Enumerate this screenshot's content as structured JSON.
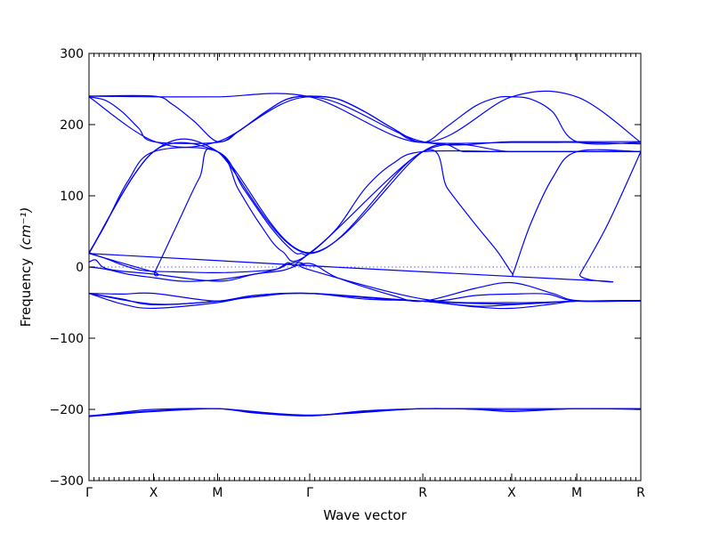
{
  "chart_data": {
    "type": "line",
    "title": "",
    "xlabel": "Wave vector",
    "ylabel": "Frequency",
    "ylabel_unit": "(cm⁻¹)",
    "ylim": [
      -300,
      300
    ],
    "xlim": [
      0,
      1
    ],
    "yticks": [
      -300,
      -200,
      -100,
      0,
      100,
      200,
      300
    ],
    "grid": false,
    "zero_line": {
      "y": 0,
      "style": "dotted"
    },
    "high_symmetry_points": [
      {
        "label": "Γ",
        "x": 0.0
      },
      {
        "label": "X",
        "x": 0.117
      },
      {
        "label": "M",
        "x": 0.233
      },
      {
        "label": "Γ",
        "x": 0.4
      },
      {
        "label": "R",
        "x": 0.605
      },
      {
        "label": "X",
        "x": 0.766
      },
      {
        "label": "M",
        "x": 0.884
      },
      {
        "label": "R",
        "x": 1.0
      }
    ],
    "series": [
      {
        "x": [
          0,
          0.117,
          0.233,
          0.4,
          0.605,
          0.766,
          0.884,
          1.0
        ],
        "y": [
          240,
          239,
          239,
          239,
          175,
          239,
          239,
          175
        ]
      },
      {
        "x": [
          0,
          0.03,
          0.06,
          0.09,
          0.117,
          0.233,
          0.27,
          0.32,
          0.36,
          0.4,
          0.45,
          0.5,
          0.55,
          0.605,
          0.65,
          0.7,
          0.74,
          0.766,
          0.8,
          0.84,
          0.884,
          1.0
        ],
        "y": [
          239,
          234,
          218,
          195,
          176,
          175,
          190,
          218,
          236,
          240,
          236,
          218,
          195,
          175,
          198,
          226,
          238,
          239,
          236,
          218,
          176,
          175
        ]
      },
      {
        "x": [
          0,
          0.117,
          0.15,
          0.19,
          0.233,
          0.27,
          0.32,
          0.36,
          0.4,
          0.45,
          0.5,
          0.55,
          0.605,
          0.766,
          0.81,
          0.85,
          0.884,
          1.0
        ],
        "y": [
          240,
          240,
          229,
          205,
          176,
          190,
          218,
          236,
          240,
          236,
          218,
          195,
          175,
          175,
          175,
          175,
          175,
          173
        ]
      },
      {
        "x": [
          0,
          0.12,
          0.233,
          0.4,
          0.605,
          0.766,
          0.884,
          1.0
        ],
        "y": [
          239,
          176,
          176,
          239,
          176,
          176,
          176,
          176
        ]
      },
      {
        "x": [
          0,
          0.03,
          0.07,
          0.117,
          0.233,
          0.28,
          0.33,
          0.37,
          0.385,
          0.4,
          0.45,
          0.5,
          0.55,
          0.605,
          0.766,
          0.884,
          1.0
        ],
        "y": [
          20,
          60,
          120,
          162,
          162,
          110,
          55,
          22,
          19,
          20,
          55,
          110,
          145,
          162,
          162,
          162,
          162
        ]
      },
      {
        "x": [
          0,
          0.117,
          0.233,
          0.4,
          0.605,
          0.68,
          0.72,
          0.75,
          0.766,
          0.77,
          0.884,
          1.0
        ],
        "y": [
          19,
          162,
          162,
          20,
          162,
          162,
          162,
          162,
          162,
          162,
          162,
          162
        ]
      },
      {
        "x": [
          0,
          0.117,
          0.12,
          0.16,
          0.2,
          0.233,
          0.4,
          0.605,
          0.766,
          0.884,
          1.0
        ],
        "y": [
          19,
          -7,
          -6,
          60,
          125,
          162,
          19,
          162,
          162,
          162,
          162
        ]
      },
      {
        "x": [
          0,
          0.117,
          0.233,
          0.27,
          0.31,
          0.35,
          0.4,
          0.605,
          0.65,
          0.7,
          0.74,
          0.766,
          0.77,
          0.8,
          0.84,
          0.884,
          1.0
        ],
        "y": [
          20,
          162,
          162,
          110,
          60,
          22,
          19,
          162,
          110,
          60,
          22,
          -8,
          -6,
          60,
          125,
          162,
          162
        ]
      },
      {
        "x": [
          0,
          0.884,
          0.89,
          0.94,
          1.0
        ],
        "y": [
          19,
          -18,
          -10,
          60,
          162
        ]
      },
      {
        "x": [
          0,
          0.03,
          0.06,
          0.09,
          0.117,
          0.17,
          0.233,
          0.3,
          0.34,
          0.36,
          0.38,
          0.4
        ],
        "y": [
          20,
          12,
          3,
          -4,
          -6,
          -7,
          -8,
          -6,
          -3,
          4,
          8,
          20
        ]
      },
      {
        "x": [
          0,
          0.03,
          0.07,
          0.117,
          0.17,
          0.233,
          0.3,
          0.34,
          0.36,
          0.37,
          0.38,
          0.39,
          0.4,
          0.605,
          0.766,
          0.884,
          1.0
        ],
        "y": [
          0,
          -3,
          -10,
          -15,
          -20,
          -18,
          -10,
          -3,
          6,
          2,
          6,
          4,
          -4,
          -45,
          -50,
          -48,
          -47
        ]
      },
      {
        "x": [
          0,
          0.012,
          0.025,
          0.05,
          0.117,
          0.233,
          0.3,
          0.35,
          0.4,
          0.45,
          0.55,
          0.605,
          0.7,
          0.766,
          0.84,
          0.884,
          1.0
        ],
        "y": [
          7,
          10,
          0,
          -5,
          -10,
          -20,
          -10,
          -5,
          5,
          -15,
          -40,
          -48,
          -30,
          -22,
          -37,
          -47,
          -48
        ]
      },
      {
        "x": [
          0,
          0.06,
          0.117,
          0.233,
          0.3,
          0.4,
          0.605,
          0.7,
          0.766,
          0.83,
          0.884,
          1.0
        ],
        "y": [
          -37,
          -38,
          -37,
          -48,
          -40,
          -37,
          -48,
          -40,
          -38,
          -38,
          -48,
          -47
        ]
      },
      {
        "x": [
          0,
          0.06,
          0.117,
          0.233,
          0.3,
          0.4,
          0.5,
          0.605,
          0.7,
          0.766,
          0.84,
          0.884,
          1.0
        ],
        "y": [
          -37,
          -45,
          -53,
          -48,
          -40,
          -37,
          -45,
          -48,
          -56,
          -58,
          -52,
          -48,
          -47
        ]
      },
      {
        "x": [
          0,
          0.06,
          0.117,
          0.233,
          0.3,
          0.4,
          0.5,
          0.605,
          0.7,
          0.766,
          0.83,
          0.884,
          1.0
        ],
        "y": [
          -37,
          -52,
          -58,
          -50,
          -40,
          -37,
          -43,
          -48,
          -55,
          -53,
          -50,
          -48,
          -48
        ]
      },
      {
        "x": [
          0,
          0.117,
          0.233,
          0.3,
          0.4,
          0.605,
          0.766,
          0.884,
          1.0
        ],
        "y": [
          -37,
          -52,
          -48,
          -42,
          -37,
          -48,
          -52,
          -48,
          -47
        ]
      },
      {
        "x": [
          0,
          0.05,
          0.117,
          0.233,
          0.3,
          0.4,
          0.5,
          0.605,
          0.766,
          0.884,
          1.0
        ],
        "y": [
          -210,
          -205,
          -200,
          -199,
          -205,
          -209,
          -202,
          -199,
          -199,
          -199,
          -199
        ]
      },
      {
        "x": [
          0,
          0.05,
          0.117,
          0.233,
          0.3,
          0.4,
          0.5,
          0.605,
          0.7,
          0.766,
          0.884,
          1.0
        ],
        "y": [
          -210,
          -207,
          -203,
          -199,
          -204,
          -209,
          -203,
          -199,
          -200,
          -203,
          -199,
          -200
        ]
      },
      {
        "x": [
          0,
          0.117,
          0.233,
          0.4,
          0.605,
          0.766,
          0.884,
          1.0
        ],
        "y": [
          -209,
          -202,
          -199,
          -208,
          -199,
          -201,
          -199,
          -199
        ]
      }
    ]
  }
}
